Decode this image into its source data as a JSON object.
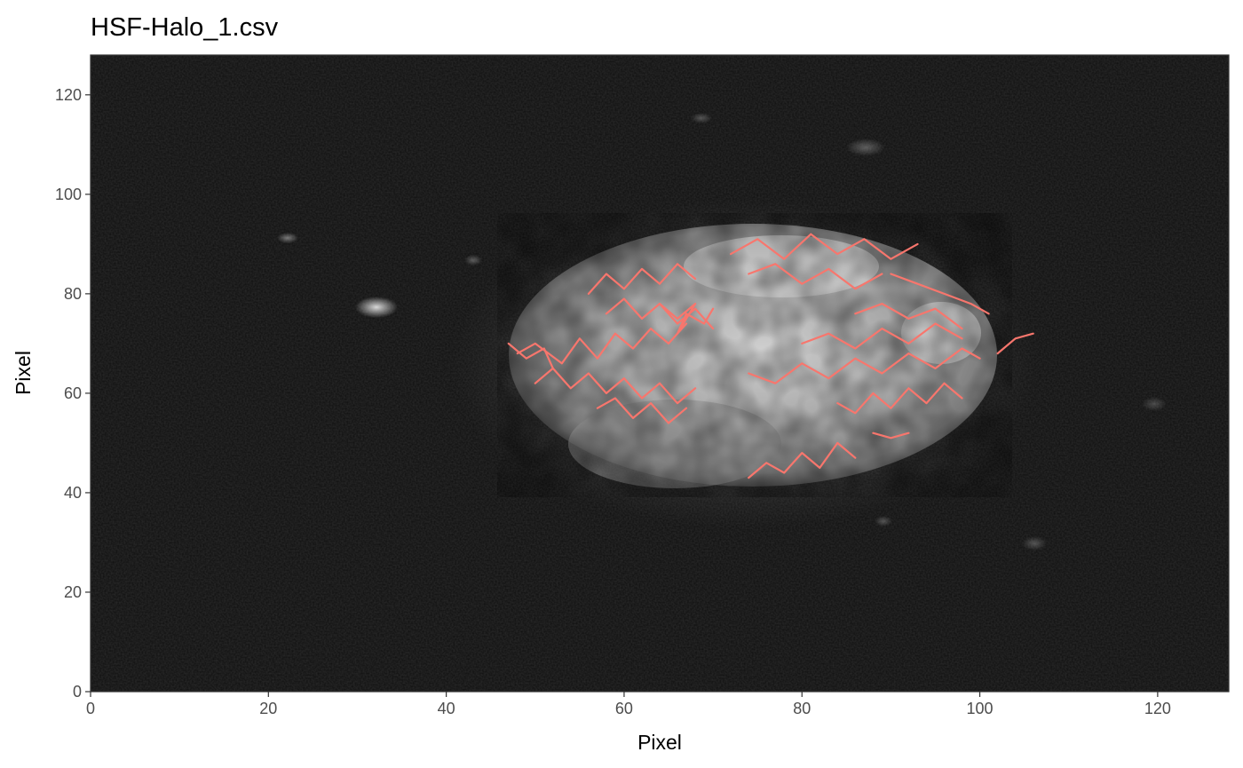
{
  "chart_data": {
    "type": "line",
    "title": "HSF-Halo_1.csv",
    "xlabel": "Pixel",
    "ylabel": "Pixel",
    "xlim": [
      0,
      128
    ],
    "ylim": [
      0,
      128
    ],
    "xticks": [
      0,
      20,
      40,
      60,
      80,
      100,
      120
    ],
    "yticks": [
      0,
      20,
      40,
      60,
      80,
      100,
      120
    ],
    "grid": false,
    "background": "grayscale microscopy image of a cell nucleus",
    "colors": {
      "tracks": "#F8766D",
      "panel_border": "#333333"
    },
    "series": [
      {
        "values": [
          [
            48,
            68
          ],
          [
            50,
            70
          ],
          [
            53,
            66
          ],
          [
            55,
            71
          ],
          [
            57,
            67
          ],
          [
            59,
            72
          ],
          [
            61,
            69
          ],
          [
            63,
            73
          ],
          [
            65,
            70
          ],
          [
            67,
            74
          ]
        ]
      },
      {
        "values": [
          [
            50,
            62
          ],
          [
            52,
            65
          ],
          [
            54,
            61
          ],
          [
            56,
            64
          ],
          [
            58,
            60
          ],
          [
            60,
            63
          ],
          [
            62,
            59
          ],
          [
            64,
            62
          ],
          [
            66,
            58
          ],
          [
            68,
            61
          ]
        ]
      },
      {
        "values": [
          [
            56,
            80
          ],
          [
            58,
            84
          ],
          [
            60,
            81
          ],
          [
            62,
            85
          ],
          [
            64,
            82
          ],
          [
            66,
            86
          ],
          [
            68,
            83
          ]
        ]
      },
      {
        "values": [
          [
            58,
            76
          ],
          [
            60,
            79
          ],
          [
            62,
            75
          ],
          [
            64,
            78
          ],
          [
            66,
            74
          ],
          [
            68,
            77
          ],
          [
            70,
            73
          ]
        ]
      },
      {
        "values": [
          [
            64,
            78
          ],
          [
            66,
            75
          ],
          [
            68,
            78
          ],
          [
            66,
            72
          ],
          [
            67,
            76
          ],
          [
            69,
            74
          ],
          [
            70,
            77
          ]
        ]
      },
      {
        "values": [
          [
            57,
            57
          ],
          [
            59,
            59
          ],
          [
            61,
            55
          ],
          [
            63,
            58
          ],
          [
            65,
            54
          ],
          [
            67,
            57
          ]
        ]
      },
      {
        "values": [
          [
            72,
            88
          ],
          [
            75,
            91
          ],
          [
            78,
            87
          ],
          [
            81,
            92
          ],
          [
            84,
            88
          ],
          [
            87,
            91
          ],
          [
            90,
            87
          ],
          [
            93,
            90
          ]
        ]
      },
      {
        "values": [
          [
            74,
            84
          ],
          [
            77,
            86
          ],
          [
            80,
            82
          ],
          [
            83,
            85
          ],
          [
            86,
            81
          ],
          [
            89,
            84
          ]
        ]
      },
      {
        "values": [
          [
            90,
            84
          ],
          [
            93,
            82
          ],
          [
            96,
            80
          ],
          [
            99,
            78
          ],
          [
            101,
            76
          ]
        ]
      },
      {
        "values": [
          [
            74,
            64
          ],
          [
            77,
            62
          ],
          [
            80,
            66
          ],
          [
            83,
            63
          ],
          [
            86,
            67
          ],
          [
            89,
            64
          ],
          [
            92,
            68
          ],
          [
            95,
            65
          ],
          [
            98,
            69
          ],
          [
            100,
            67
          ]
        ]
      },
      {
        "values": [
          [
            84,
            58
          ],
          [
            86,
            56
          ],
          [
            88,
            60
          ],
          [
            90,
            57
          ],
          [
            92,
            61
          ],
          [
            94,
            58
          ],
          [
            96,
            62
          ],
          [
            98,
            59
          ]
        ]
      },
      {
        "values": [
          [
            80,
            70
          ],
          [
            83,
            72
          ],
          [
            86,
            69
          ],
          [
            89,
            73
          ],
          [
            92,
            70
          ],
          [
            95,
            74
          ],
          [
            98,
            71
          ]
        ]
      },
      {
        "values": [
          [
            74,
            43
          ],
          [
            76,
            46
          ],
          [
            78,
            44
          ],
          [
            80,
            48
          ],
          [
            82,
            45
          ],
          [
            84,
            50
          ],
          [
            86,
            47
          ]
        ]
      },
      {
        "values": [
          [
            86,
            76
          ],
          [
            89,
            78
          ],
          [
            92,
            75
          ],
          [
            95,
            77
          ],
          [
            98,
            73
          ]
        ]
      },
      {
        "values": [
          [
            88,
            52
          ],
          [
            90,
            51
          ],
          [
            92,
            52
          ]
        ]
      },
      {
        "values": [
          [
            102,
            68
          ],
          [
            104,
            71
          ],
          [
            106,
            72
          ]
        ]
      },
      {
        "values": [
          [
            47,
            70
          ],
          [
            49,
            67
          ],
          [
            51,
            69
          ],
          [
            52,
            65
          ]
        ]
      }
    ]
  }
}
